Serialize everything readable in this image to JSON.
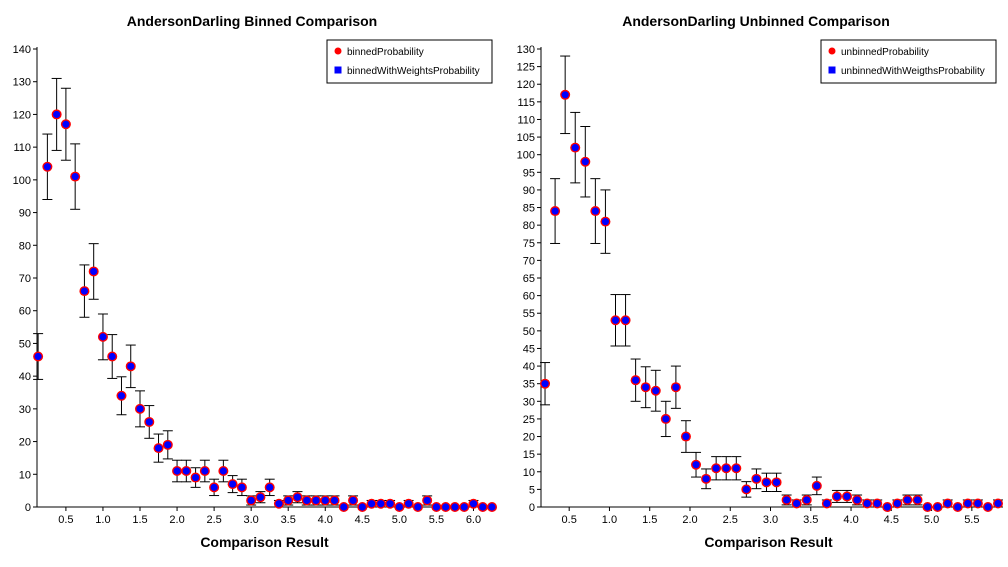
{
  "chart_data": [
    {
      "type": "scatter",
      "title": "AndersonDarling Binned Comparison",
      "xlabel": "Comparison Result",
      "ylabel": "",
      "xlim": [
        0.11,
        6.25
      ],
      "ylim": [
        0,
        140
      ],
      "xticks": [
        "0.5",
        "1.0",
        "1.5",
        "2.0",
        "2.5",
        "3.0",
        "3.5",
        "4.0",
        "4.5",
        "5.0",
        "5.5",
        "6.0"
      ],
      "yticks": [
        "0",
        "10",
        "20",
        "30",
        "40",
        "50",
        "60",
        "70",
        "80",
        "90",
        "100",
        "110",
        "120",
        "130",
        "140"
      ],
      "x": [
        0.125,
        0.25,
        0.375,
        0.5,
        0.625,
        0.75,
        0.875,
        1.0,
        1.125,
        1.25,
        1.375,
        1.5,
        1.625,
        1.75,
        1.875,
        2.0,
        2.125,
        2.25,
        2.375,
        2.5,
        2.625,
        2.75,
        2.875,
        3.0,
        3.125,
        3.25,
        3.375,
        3.5,
        3.625,
        3.75,
        3.875,
        4.0,
        4.125,
        4.25,
        4.375,
        4.5,
        4.625,
        4.75,
        4.875,
        5.0,
        5.125,
        5.25,
        5.375,
        5.5,
        5.625,
        5.75,
        5.875,
        6.0,
        6.125,
        6.25
      ],
      "errors": [
        7,
        10,
        11,
        11,
        10,
        8,
        8.5,
        7,
        6.7,
        5.8,
        6.5,
        5.5,
        5,
        4.3,
        4.3,
        3.3,
        3.3,
        3,
        3.3,
        2.5,
        3.3,
        2.6,
        2.5,
        1.4,
        1.7,
        2.5,
        1,
        1.4,
        1.7,
        1.4,
        1.4,
        1.4,
        1.4,
        0,
        1.4,
        0,
        1,
        1,
        1,
        0,
        1,
        0,
        1.4,
        0,
        0,
        0,
        0,
        1,
        0,
        0
      ],
      "legend": "top-right",
      "series": [
        {
          "name": "binnedProbability",
          "color": "#ff0000",
          "values": [
            46,
            104,
            120,
            117,
            101,
            66,
            72,
            52,
            46,
            34,
            43,
            30,
            26,
            18,
            19,
            11,
            11,
            9,
            11,
            6,
            11,
            7,
            6,
            2,
            3,
            6,
            1,
            2,
            3,
            2,
            2,
            2,
            2,
            0,
            2,
            0,
            1,
            1,
            1,
            0,
            1,
            0,
            2,
            0,
            0,
            0,
            0,
            1,
            0,
            0
          ]
        },
        {
          "name": "binnedWithWeightsProbability",
          "color": "#0000ff",
          "values": [
            46,
            104,
            120,
            117,
            101,
            66,
            72,
            52,
            46,
            34,
            43,
            30,
            26,
            18,
            19,
            11,
            11,
            9,
            11,
            6,
            11,
            7,
            6,
            2,
            3,
            6,
            1,
            2,
            3,
            2,
            2,
            2,
            2,
            0,
            2,
            0,
            1,
            1,
            1,
            0,
            1,
            0,
            2,
            0,
            0,
            0,
            0,
            1,
            0,
            0
          ]
        }
      ]
    },
    {
      "type": "scatter",
      "title": "AndersonDarling Unbinned Comparison",
      "xlabel": "Comparison Result",
      "ylabel": "",
      "xlim": [
        0.15,
        5.8
      ],
      "ylim": [
        0,
        130
      ],
      "xticks": [
        "0.5",
        "1.0",
        "1.5",
        "2.0",
        "2.5",
        "3.0",
        "3.5",
        "4.0",
        "4.5",
        "5.0",
        "5.5"
      ],
      "yticks": [
        "0",
        "5",
        "10",
        "15",
        "20",
        "25",
        "30",
        "35",
        "40",
        "45",
        "50",
        "55",
        "60",
        "65",
        "70",
        "75",
        "80",
        "85",
        "90",
        "95",
        "100",
        "105",
        "110",
        "115",
        "120",
        "125",
        "130"
      ],
      "x": [
        0.2,
        0.325,
        0.45,
        0.575,
        0.7,
        0.825,
        0.95,
        1.075,
        1.2,
        1.325,
        1.45,
        1.575,
        1.7,
        1.825,
        1.95,
        2.075,
        2.2,
        2.325,
        2.45,
        2.575,
        2.7,
        2.825,
        2.95,
        3.075,
        3.2,
        3.325,
        3.45,
        3.575,
        3.7,
        3.825,
        3.95,
        4.075,
        4.2,
        4.325,
        4.45,
        4.575,
        4.7,
        4.825,
        4.95,
        5.075,
        5.2,
        5.325,
        5.45,
        5.575,
        5.7,
        5.825
      ],
      "errors": [
        6,
        9.2,
        11,
        10,
        10,
        9.2,
        9,
        7.3,
        7.3,
        6,
        5.8,
        5.8,
        5,
        6,
        4.5,
        3.5,
        2.8,
        3.3,
        3.3,
        3.3,
        2.2,
        2.8,
        2.6,
        2.6,
        1.4,
        1,
        1.4,
        2.5,
        1,
        1.7,
        1.7,
        1.4,
        1,
        1,
        0,
        1,
        1.4,
        1.4,
        0,
        0,
        1,
        0,
        1,
        1,
        0,
        1
      ],
      "legend": "top-right",
      "series": [
        {
          "name": "unbinnedProbability",
          "color": "#ff0000",
          "values": [
            35,
            84,
            117,
            102,
            98,
            84,
            81,
            53,
            53,
            36,
            34,
            33,
            25,
            34,
            20,
            12,
            8,
            11,
            11,
            11,
            5,
            8,
            7,
            7,
            2,
            1,
            2,
            6,
            1,
            3,
            3,
            2,
            1,
            1,
            0,
            1,
            2,
            2,
            0,
            0,
            1,
            0,
            1,
            1,
            0,
            1
          ]
        },
        {
          "name": "unbinnedWithWeigthsProbability",
          "color": "#0000ff",
          "values": [
            35,
            84,
            117,
            102,
            98,
            84,
            81,
            53,
            53,
            36,
            34,
            33,
            25,
            34,
            20,
            12,
            8,
            11,
            11,
            11,
            5,
            8,
            7,
            7,
            2,
            1,
            2,
            6,
            1,
            3,
            3,
            2,
            1,
            1,
            0,
            1,
            2,
            2,
            0,
            0,
            1,
            0,
            1,
            1,
            0,
            1
          ]
        }
      ]
    }
  ]
}
